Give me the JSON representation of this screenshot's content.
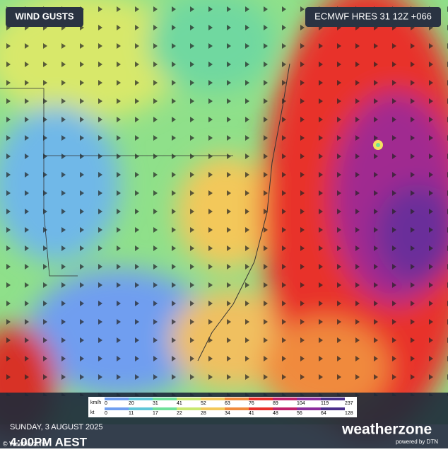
{
  "header": {
    "title": "WIND GUSTS",
    "model": "ECMWF HRES 31 12Z +066"
  },
  "legend": {
    "units": [
      "km/h",
      "kt"
    ],
    "kmh": [
      "0",
      "20",
      "31",
      "41",
      "52",
      "63",
      "76",
      "89",
      "104",
      "119",
      "237"
    ],
    "kt": [
      "0",
      "11",
      "17",
      "22",
      "28",
      "34",
      "41",
      "48",
      "56",
      "64",
      "128"
    ],
    "colors": [
      "#6f9ef0",
      "#5fc6d8",
      "#6fe09a",
      "#c8e870",
      "#f3c85a",
      "#f08a3c",
      "#e8302a",
      "#c0206a",
      "#8a2c9c",
      "#4a2e8a"
    ]
  },
  "footer": {
    "date": "SUNDAY, 3 AUGUST 2025",
    "time": "4:00PM AEST",
    "copyright": "© Weatherzone"
  },
  "brand": {
    "name": "weatherzone",
    "tagline": "powered by DTN"
  }
}
